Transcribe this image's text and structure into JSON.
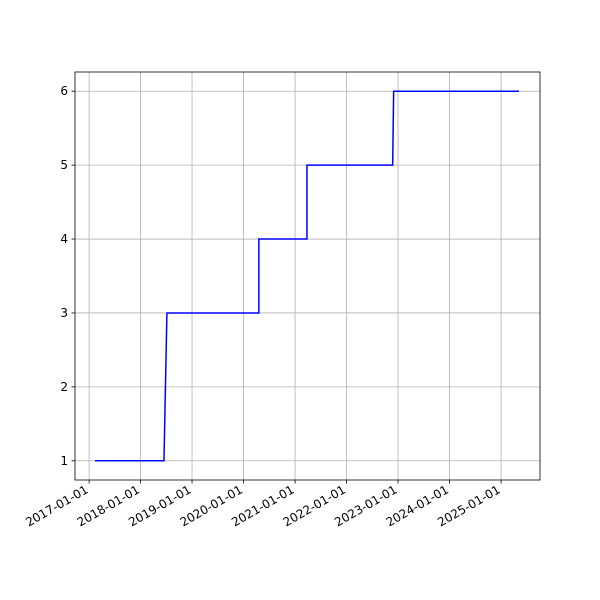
{
  "chart_data": {
    "type": "line",
    "x": [
      "2017-02-12",
      "2018-06-16",
      "2018-07-07",
      "2020-04-19",
      "2020-04-19",
      "2021-03-26",
      "2021-03-26",
      "2022-11-24",
      "2022-12-01",
      "2025-05-08"
    ],
    "values": [
      1,
      1,
      3,
      3,
      4,
      4,
      5,
      5,
      6,
      6
    ],
    "color": "#0000ff",
    "xlim": [
      "2016-09-23",
      "2025-10-04"
    ],
    "xticks": [
      "2017-01-01",
      "2018-01-01",
      "2019-01-01",
      "2020-01-01",
      "2021-01-01",
      "2022-01-01",
      "2023-01-01",
      "2024-01-01",
      "2025-01-01"
    ],
    "ylim": [
      0.74,
      6.26
    ],
    "yticks": [
      1,
      2,
      3,
      4,
      5,
      6
    ],
    "grid": true
  }
}
